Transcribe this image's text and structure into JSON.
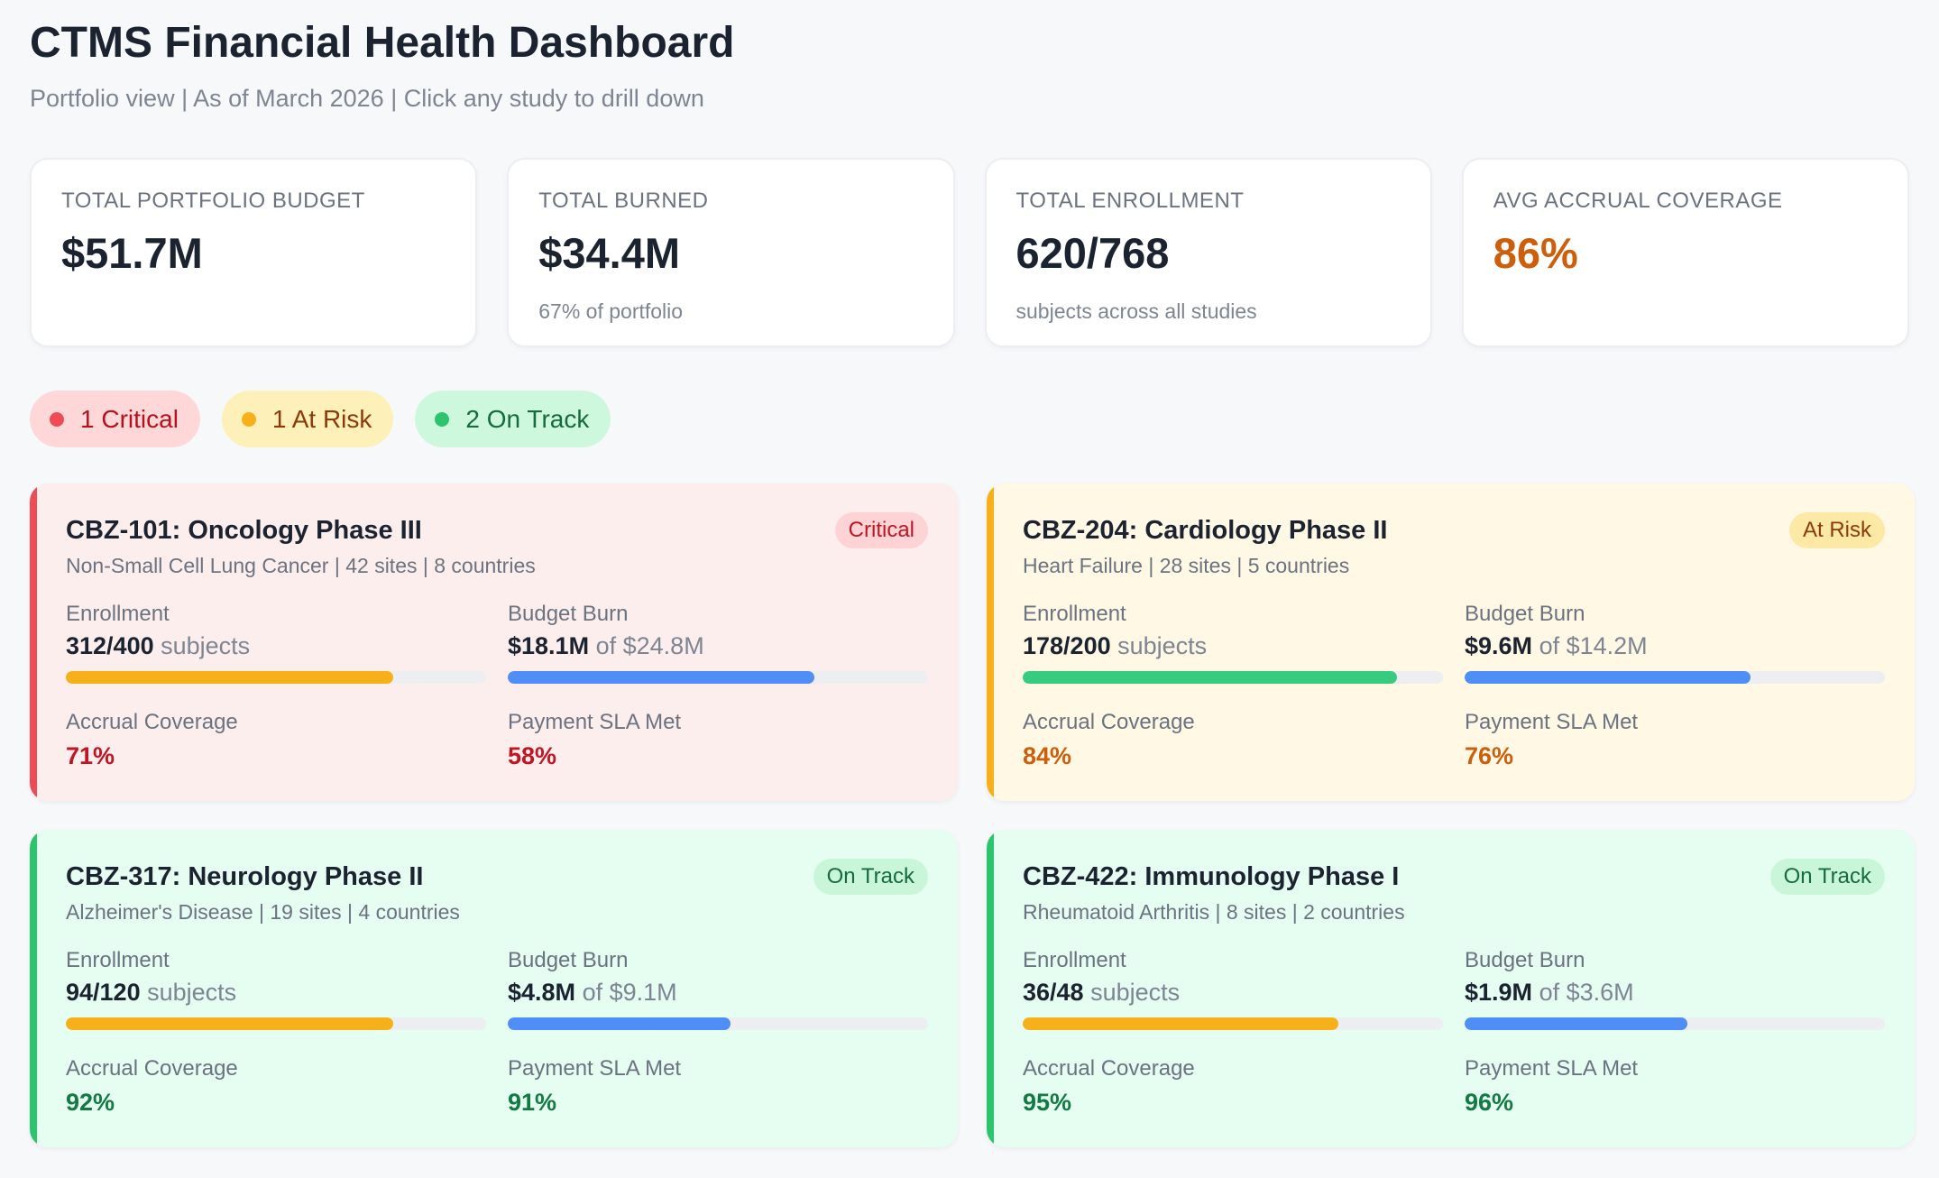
{
  "header": {
    "title": "CTMS Financial Health Dashboard",
    "subtitle": "Portfolio view | As of March 2026 | Click any study to drill down"
  },
  "kpis": [
    {
      "label": "TOTAL PORTFOLIO BUDGET",
      "value": "$51.7M",
      "sub": ""
    },
    {
      "label": "TOTAL BURNED",
      "value": "$34.4M",
      "sub": "67% of portfolio"
    },
    {
      "label": "TOTAL ENROLLMENT",
      "value": "620/768",
      "sub": "subjects across all studies"
    },
    {
      "label": "AVG ACCRUAL COVERAGE",
      "value": "86%",
      "sub": "",
      "color": "#cc5f0c"
    }
  ],
  "filters": [
    {
      "label": "1 Critical",
      "status": "critical"
    },
    {
      "label": "1 At Risk",
      "status": "atrisk"
    },
    {
      "label": "2 On Track",
      "status": "ontrack"
    }
  ],
  "labels": {
    "enrollment": "Enrollment",
    "budget_burn": "Budget Burn",
    "accrual": "Accrual Coverage",
    "sla": "Payment SLA Met",
    "subjects": "subjects",
    "of": "of"
  },
  "colors": {
    "critical": "#ef4b55",
    "atrisk": "#f6b01a",
    "ontrack": "#2dc46e",
    "budget_bar": "#4f8ef7"
  },
  "studies": [
    {
      "status": "critical",
      "badge": "Critical",
      "title": "CBZ-101: Oncology Phase III",
      "desc": "Non-Small Cell Lung Cancer | 42 sites | 8 countries",
      "enrollment": "312/400",
      "enroll_frac": 0.78,
      "enroll_color": "amber",
      "burn": "$18.1M",
      "budget": "$24.8M",
      "burn_frac": 0.73,
      "accrual": "71%",
      "accrual_color": "red",
      "sla": "58%",
      "sla_color": "red"
    },
    {
      "status": "atrisk",
      "badge": "At Risk",
      "title": "CBZ-204: Cardiology Phase II",
      "desc": "Heart Failure | 28 sites | 5 countries",
      "enrollment": "178/200",
      "enroll_frac": 0.89,
      "enroll_color": "green",
      "burn": "$9.6M",
      "budget": "$14.2M",
      "burn_frac": 0.68,
      "accrual": "84%",
      "accrual_color": "orange",
      "sla": "76%",
      "sla_color": "orange"
    },
    {
      "status": "ontrack",
      "badge": "On Track",
      "title": "CBZ-317: Neurology Phase II",
      "desc": "Alzheimer's Disease | 19 sites | 4 countries",
      "enrollment": "94/120",
      "enroll_frac": 0.78,
      "enroll_color": "amber",
      "burn": "$4.8M",
      "budget": "$9.1M",
      "burn_frac": 0.53,
      "accrual": "92%",
      "accrual_color": "green",
      "sla": "91%",
      "sla_color": "green"
    },
    {
      "status": "ontrack",
      "badge": "On Track",
      "title": "CBZ-422: Immunology Phase I",
      "desc": "Rheumatoid Arthritis | 8 sites | 2 countries",
      "enrollment": "36/48",
      "enroll_frac": 0.75,
      "enroll_color": "amber",
      "burn": "$1.9M",
      "budget": "$3.6M",
      "burn_frac": 0.53,
      "accrual": "95%",
      "accrual_color": "green",
      "sla": "96%",
      "sla_color": "green"
    }
  ]
}
